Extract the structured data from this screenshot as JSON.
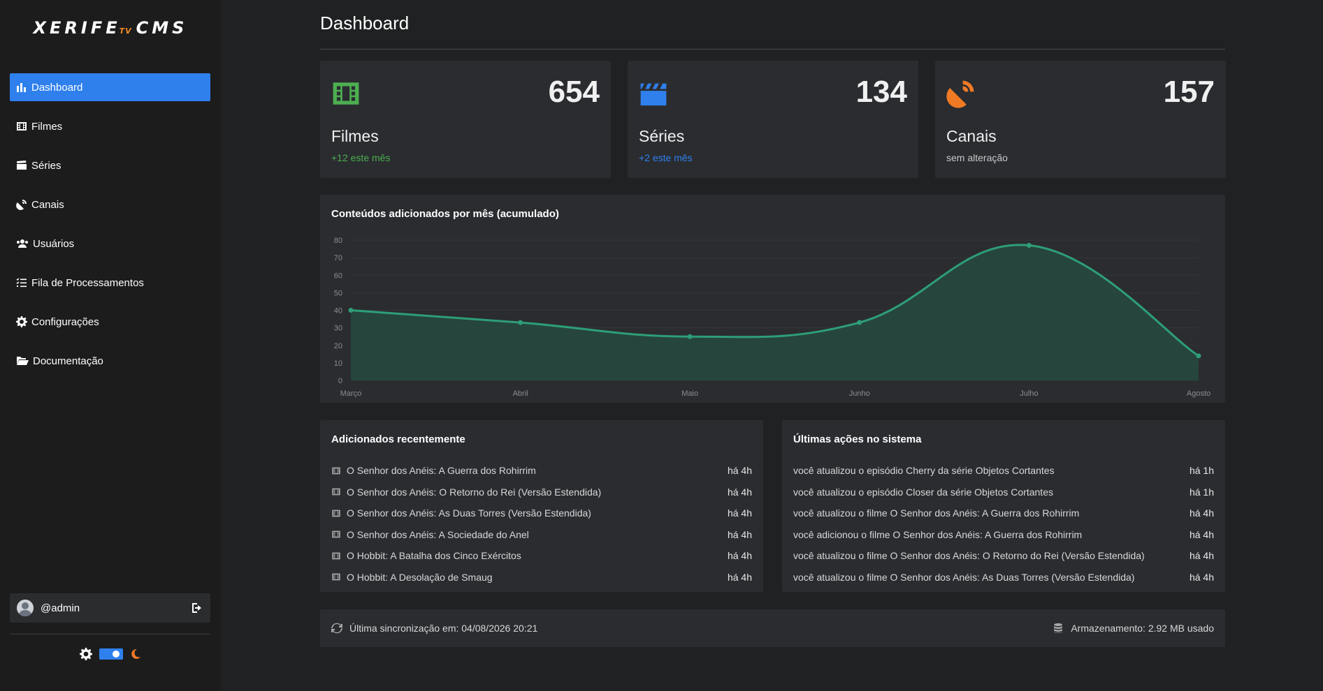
{
  "app": {
    "logo_main": "XERIFE",
    "logo_tv": "TV",
    "logo_cms": "CMS"
  },
  "sidebar": {
    "items": [
      {
        "label": "Dashboard",
        "icon": "bar-chart-icon",
        "active": true
      },
      {
        "label": "Filmes",
        "icon": "film-icon"
      },
      {
        "label": "Séries",
        "icon": "clapperboard-icon"
      },
      {
        "label": "Canais",
        "icon": "satellite-dish-icon"
      },
      {
        "label": "Usuários",
        "icon": "users-icon"
      },
      {
        "label": "Fila de Processamentos",
        "icon": "list-check-icon"
      },
      {
        "label": "Configurações",
        "icon": "gear-icon"
      },
      {
        "label": "Documentação",
        "icon": "folder-open-icon"
      }
    ],
    "user": "@admin"
  },
  "theme": {
    "sun_icon": "sun-icon",
    "moon_icon": "moon-icon",
    "mode": "dark"
  },
  "page": {
    "title": "Dashboard"
  },
  "cards": [
    {
      "count": "654",
      "label": "Filmes",
      "sub": "+12 este mês",
      "sub_color": "#4caf50",
      "icon_color": "#4caf50",
      "icon": "film-icon"
    },
    {
      "count": "134",
      "label": "Séries",
      "sub": "+2 este mês",
      "sub_color": "#2f80ed",
      "icon_color": "#2f80ed",
      "icon": "clapperboard-icon"
    },
    {
      "count": "157",
      "label": "Canais",
      "sub": "sem alteração",
      "sub_color": "#c8c8c8",
      "icon_color": "#f07a24",
      "icon": "satellite-dish-icon"
    }
  ],
  "chart_data": {
    "type": "area",
    "title": "Conteúdos adicionados por mês (acumulado)",
    "categories": [
      "Março",
      "Abril",
      "Maio",
      "Junho",
      "Julho",
      "Agosto"
    ],
    "values": [
      40,
      33,
      25,
      33,
      77,
      14
    ],
    "ylim": [
      0,
      80
    ],
    "yticks": [
      0,
      10,
      20,
      30,
      40,
      50,
      60,
      70,
      80
    ],
    "grid": true,
    "color": "#2e9e78",
    "fill_color": "#264a3f"
  },
  "recent": {
    "title": "Adicionados recentemente",
    "items": [
      {
        "title": "O Senhor dos Anéis: A Guerra dos Rohirrim",
        "time": "há 4h"
      },
      {
        "title": "O Senhor dos Anéis: O Retorno do Rei (Versão Estendida)",
        "time": "há 4h"
      },
      {
        "title": "O Senhor dos Anéis: As Duas Torres (Versão Estendida)",
        "time": "há 4h"
      },
      {
        "title": "O Senhor dos Anéis: A Sociedade do Anel",
        "time": "há 4h"
      },
      {
        "title": "O Hobbit: A Batalha dos Cinco Exércitos",
        "time": "há 4h"
      },
      {
        "title": "O Hobbit: A Desolação de Smaug",
        "time": "há 4h"
      }
    ]
  },
  "actions": {
    "title": "Últimas ações no sistema",
    "items": [
      {
        "title": "você atualizou o episódio Cherry da série Objetos Cortantes",
        "time": "há 1h"
      },
      {
        "title": "você atualizou o episódio Closer da série Objetos Cortantes",
        "time": "há 1h"
      },
      {
        "title": "você atualizou o filme O Senhor dos Anéis: A Guerra dos Rohirrim",
        "time": "há 4h"
      },
      {
        "title": "você adicionou o filme O Senhor dos Anéis: A Guerra dos Rohirrim",
        "time": "há 4h"
      },
      {
        "title": "você atualizou o filme O Senhor dos Anéis: O Retorno do Rei (Versão Estendida)",
        "time": "há 4h"
      },
      {
        "title": "você atualizou o filme O Senhor dos Anéis: As Duas Torres (Versão Estendida)",
        "time": "há 4h"
      }
    ]
  },
  "footer": {
    "sync": "Última sincronização em: 04/08/2026 20:21",
    "storage": "Armazenamento: 2.92 MB usado"
  }
}
